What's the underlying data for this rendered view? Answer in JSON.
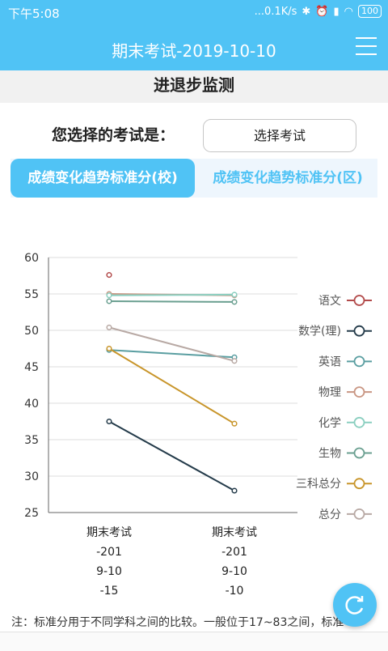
{
  "status": {
    "time": "下午5:08",
    "speed": "...0.1K/s",
    "battery": "100"
  },
  "header": {
    "title": "期末考试-2019-10-10"
  },
  "subheader": {
    "title": "进退步监测"
  },
  "exam_select": {
    "label": "您选择的考试是：",
    "button": "选择考试"
  },
  "tabs": [
    {
      "label": "成绩变化趋势标准分(校)",
      "active": true
    },
    {
      "label": "成绩变化趋势标准分(区)",
      "active": false
    }
  ],
  "chart_data": {
    "type": "line",
    "categories": [
      [
        "期末考试",
        "-201",
        "9-10",
        "-15"
      ],
      [
        "期末考试",
        "-201",
        "9-10",
        "-10"
      ]
    ],
    "ylim": [
      25,
      60
    ],
    "yticks": [
      25,
      30,
      35,
      40,
      45,
      50,
      55,
      60
    ],
    "grid": true,
    "legend_position": "right",
    "series": [
      {
        "name": "语文",
        "color": "#b24a4a",
        "values": [
          57.6,
          null
        ]
      },
      {
        "name": "数学(理)",
        "color": "#243b4a",
        "values": [
          37.5,
          28.0
        ]
      },
      {
        "name": "英语",
        "color": "#5a9ea1",
        "values": [
          47.3,
          46.3
        ]
      },
      {
        "name": "物理",
        "color": "#c99683",
        "values": [
          55.0,
          54.8
        ]
      },
      {
        "name": "化学",
        "color": "#8bcfc0",
        "values": [
          54.8,
          54.9
        ]
      },
      {
        "name": "生物",
        "color": "#6a9f90",
        "values": [
          54.0,
          53.9
        ]
      },
      {
        "name": "三科总分",
        "color": "#c8952a",
        "values": [
          47.5,
          37.2
        ]
      },
      {
        "name": "总分",
        "color": "#b8a9a4",
        "values": [
          50.4,
          45.8
        ]
      }
    ]
  },
  "notice": "注：标准分用于不同学科之间的比较。一般位于17~83之间，标准",
  "colors": {
    "primary": "#50c3f5",
    "subheader_bg": "#f1f1f1"
  },
  "icons": {
    "menu": "menu-icon",
    "refresh": "refresh-icon"
  }
}
